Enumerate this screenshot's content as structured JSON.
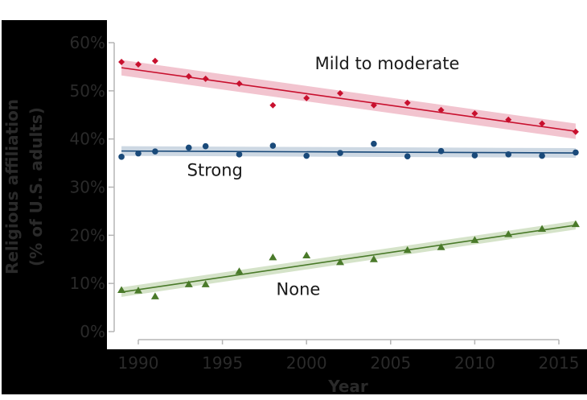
{
  "chart_data": {
    "type": "scatter",
    "title": "",
    "xlabel": "Year",
    "ylabel": "Religious affiliation\n(% of U.S. adults)",
    "ylabel_lines": [
      "Religious affiliation",
      "(% of U.S. adults)"
    ],
    "xlim": [
      1988.9,
      2016.4
    ],
    "ylim": [
      0,
      60
    ],
    "x_ticks": [
      1990,
      1995,
      2000,
      2005,
      2010,
      2015
    ],
    "x_tick_labels": [
      "1990",
      "1995",
      "2000",
      "2005",
      "2010",
      "2015"
    ],
    "y_ticks": [
      0,
      10,
      20,
      30,
      40,
      50,
      60
    ],
    "y_tick_labels": [
      "0%",
      "10%",
      "20%",
      "30%",
      "40%",
      "50%",
      "60%"
    ],
    "grid": false,
    "legend": "inline labels",
    "x": [
      1989,
      1990,
      1991,
      1993,
      1994,
      1996,
      1998,
      2000,
      2002,
      2004,
      2006,
      2008,
      2010,
      2012,
      2014,
      2016
    ],
    "series": [
      {
        "name": "Mild to moderate",
        "color": "#c8102e",
        "band_color": "#f2c4cf",
        "marker": "diamond",
        "values": [
          56.0,
          55.5,
          56.2,
          53.0,
          52.5,
          51.5,
          47.0,
          48.5,
          49.5,
          47.0,
          47.5,
          46.0,
          45.3,
          44.0,
          43.2,
          41.5
        ],
        "trend": {
          "start": [
            1989,
            54.8
          ],
          "end": [
            2016,
            41.6
          ],
          "band_half_width_start": 1.6,
          "band_half_width_end": 1.6
        },
        "label_pos": [
          2000.5,
          54.5
        ]
      },
      {
        "name": "Strong",
        "color": "#1a4a7a",
        "band_color": "#cdd8e3",
        "marker": "circle",
        "values": [
          36.3,
          37.0,
          37.4,
          38.2,
          38.5,
          36.8,
          38.6,
          36.5,
          37.1,
          39.0,
          36.4,
          37.5,
          36.6,
          36.8,
          36.5,
          37.2
        ],
        "trend": {
          "start": [
            1989,
            37.5
          ],
          "end": [
            2016,
            37.1
          ],
          "band_half_width_start": 1.0,
          "band_half_width_end": 1.0
        },
        "label_pos": [
          1992.9,
          32.3
        ]
      },
      {
        "name": "None",
        "color": "#4a7a2a",
        "band_color": "#d5e3c9",
        "marker": "triangle",
        "values": [
          8.6,
          8.5,
          7.3,
          9.8,
          9.8,
          12.5,
          15.4,
          15.8,
          14.4,
          15.0,
          16.9,
          17.5,
          19.0,
          20.2,
          21.3,
          22.3
        ],
        "trend": {
          "start": [
            1989,
            8.2
          ],
          "end": [
            2016,
            22.1
          ],
          "band_half_width_start": 1.0,
          "band_half_width_end": 0.9
        },
        "label_pos": [
          1998.2,
          7.6
        ]
      }
    ]
  }
}
